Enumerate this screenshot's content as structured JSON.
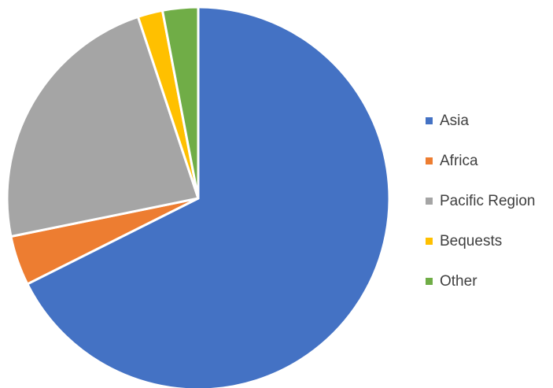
{
  "chart_data": {
    "type": "pie",
    "title": "",
    "legend_position": "right",
    "categories": [
      "Asia",
      "Africa",
      "Pacific Region",
      "Bequests",
      "Other"
    ],
    "values": [
      67.6,
      4.2,
      23.1,
      2.1,
      3.0
    ],
    "unit": "%",
    "colors": [
      "#4472C4",
      "#ED7D31",
      "#A5A5A5",
      "#FFC000",
      "#70AD47"
    ]
  }
}
